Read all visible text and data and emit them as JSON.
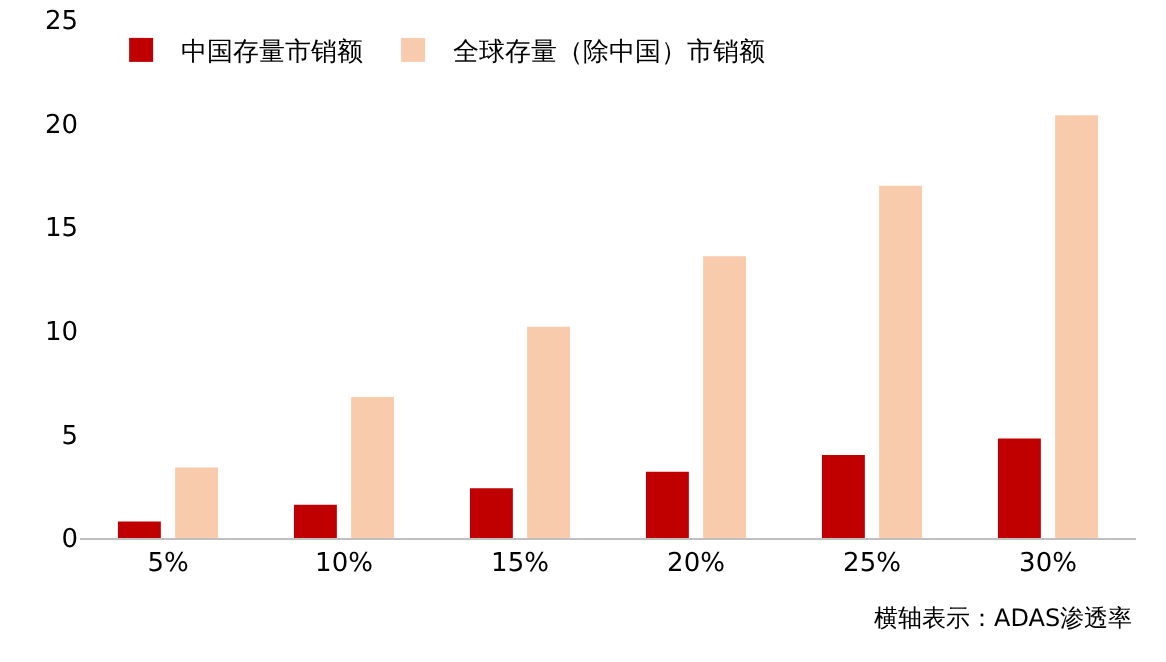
{
  "chart_data": {
    "type": "bar",
    "categories": [
      "5%",
      "10%",
      "15%",
      "20%",
      "25%",
      "30%"
    ],
    "series": [
      {
        "name": "中国存量市销额",
        "color": "#c00000",
        "values": [
          0.8,
          1.6,
          2.4,
          3.2,
          4.0,
          4.8
        ]
      },
      {
        "name": "全球存量（除中国）市销额",
        "color": "#f8cbad",
        "values": [
          3.4,
          6.8,
          10.2,
          13.6,
          17.0,
          20.4
        ]
      }
    ],
    "ylim": [
      0,
      25
    ],
    "yticks": [
      0,
      5,
      10,
      15,
      20,
      25
    ],
    "grid": false,
    "legend": "top left",
    "annotations": [
      "横轴表示：ADAS渗透率"
    ]
  }
}
